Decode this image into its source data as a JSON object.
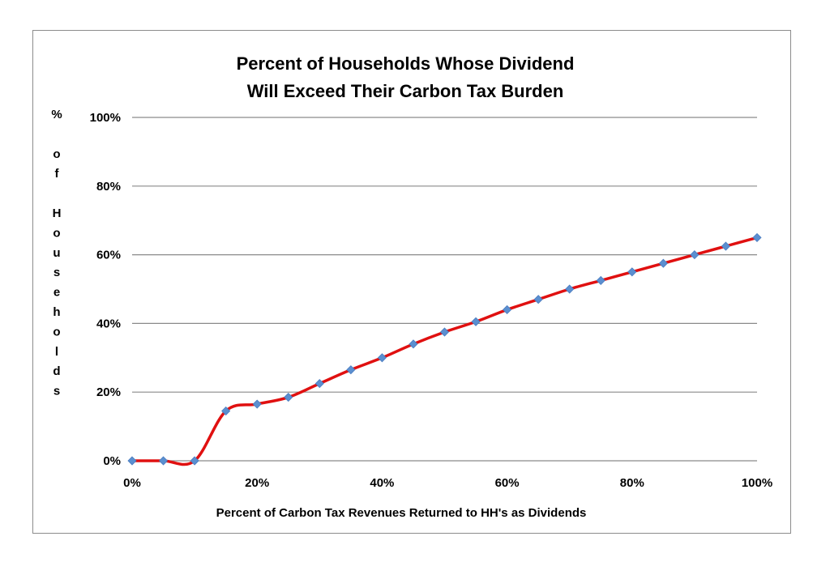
{
  "chart_data": {
    "type": "line",
    "title": [
      "Percent of Households Whose Dividend",
      "Will Exceed Their Carbon Tax Burden"
    ],
    "xlabel": "Percent of Carbon Tax Revenues Returned to HH's as Dividends",
    "ylabel": "% of Households",
    "xlim": [
      0,
      100
    ],
    "ylim": [
      0,
      100
    ],
    "x_ticks": [
      "0%",
      "20%",
      "40%",
      "60%",
      "80%",
      "100%"
    ],
    "y_ticks": [
      "0%",
      "20%",
      "40%",
      "60%",
      "80%",
      "100%"
    ],
    "grid": true,
    "legend": "none",
    "line_color": "#e01010",
    "marker_color": "#5b8fd0",
    "x": [
      0,
      5,
      10,
      15,
      20,
      25,
      30,
      35,
      40,
      45,
      50,
      55,
      60,
      65,
      70,
      75,
      80,
      85,
      90,
      95,
      100
    ],
    "series": [
      {
        "values": [
          0,
          0,
          0,
          14.5,
          16.5,
          18.5,
          22.5,
          26.5,
          30,
          34,
          37.5,
          40.5,
          44,
          47,
          50,
          52.5,
          55,
          57.5,
          60,
          62.5,
          65
        ]
      }
    ]
  }
}
